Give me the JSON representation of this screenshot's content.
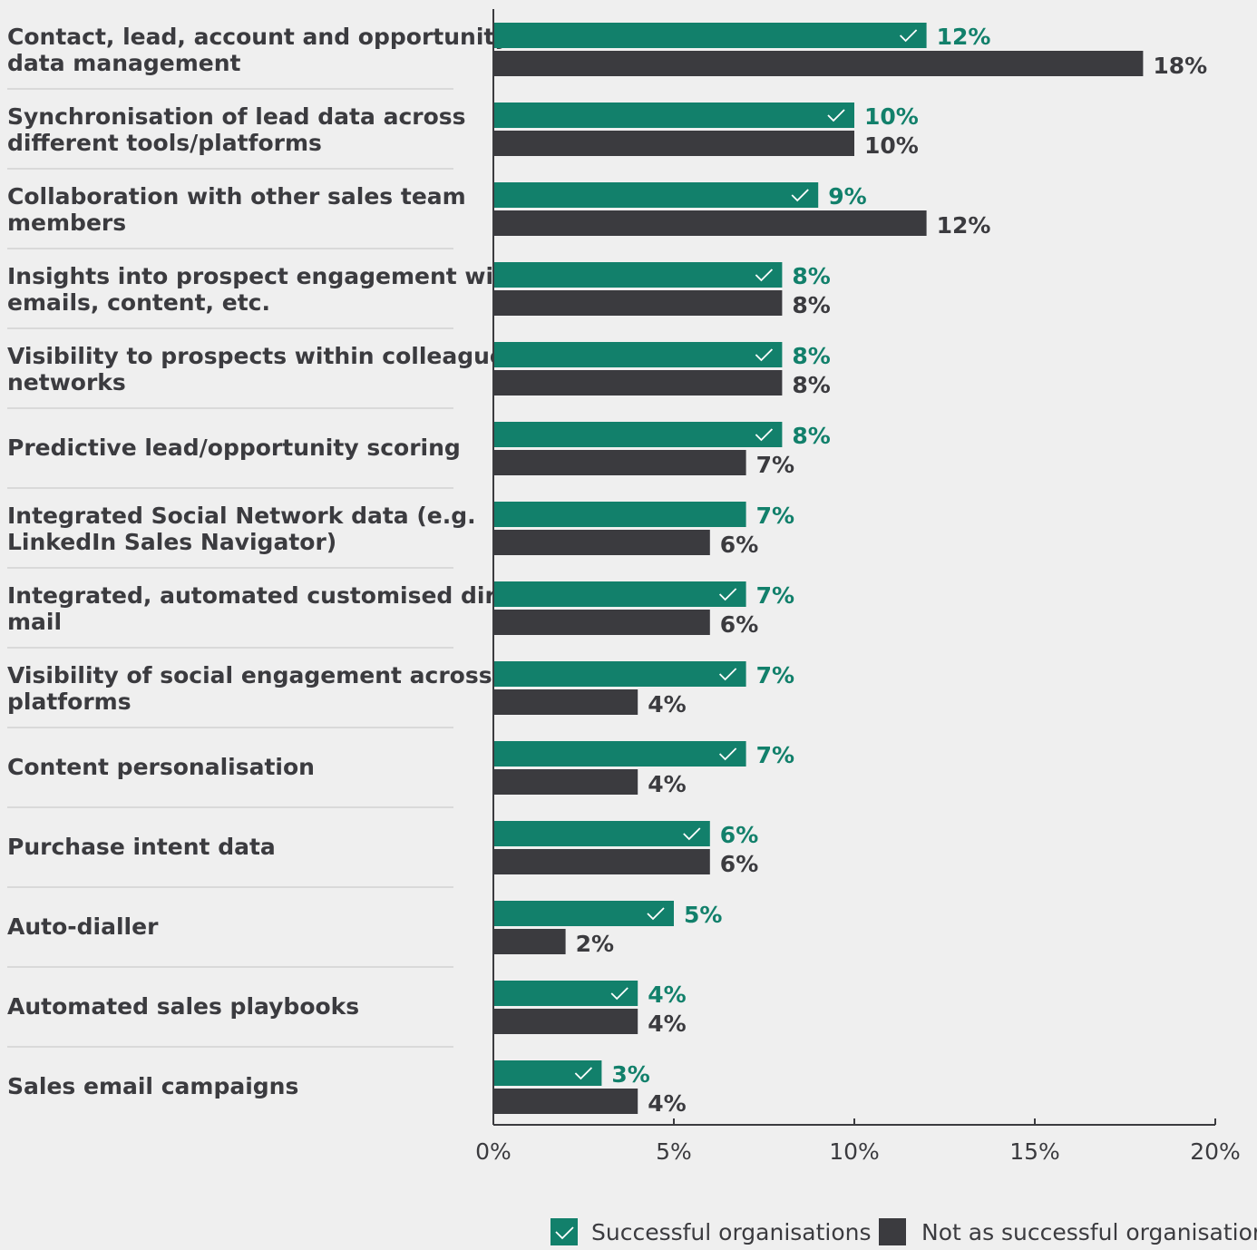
{
  "chart_data": {
    "type": "bar",
    "orientation": "horizontal",
    "categories": [
      [
        "Contact, lead, account and opportunity",
        "data management"
      ],
      [
        "Synchronisation of lead data across",
        "different tools/platforms"
      ],
      [
        "Collaboration with other sales team",
        "members"
      ],
      [
        "Insights into prospect engagement with",
        "emails, content, etc."
      ],
      [
        "Visibility to prospects within colleagues’",
        "networks"
      ],
      [
        "Predictive lead/opportunity scoring"
      ],
      [
        "Integrated Social Network data (e.g.",
        "LinkedIn Sales Navigator)"
      ],
      [
        "Integrated, automated customised direct",
        "mail"
      ],
      [
        "Visibility of social engagement across",
        "platforms"
      ],
      [
        "Content personalisation"
      ],
      [
        "Purchase intent data"
      ],
      [
        "Auto-dialler"
      ],
      [
        "Automated sales playbooks"
      ],
      [
        "Sales email campaigns"
      ]
    ],
    "series": [
      {
        "name": "Successful organisations",
        "color": "#12806b",
        "values": [
          12,
          10,
          9,
          8,
          8,
          8,
          7,
          7,
          7,
          7,
          6,
          5,
          4,
          3
        ],
        "labels": [
          "12%",
          "10%",
          "9%",
          "8%",
          "8%",
          "8%",
          "7%",
          "7%",
          "7%",
          "7%",
          "6%",
          "5%",
          "4%",
          "3%"
        ],
        "checkmark": [
          true,
          true,
          true,
          true,
          true,
          true,
          false,
          true,
          true,
          true,
          true,
          true,
          true,
          true
        ]
      },
      {
        "name": "Not as successful organisations",
        "color": "#3b3b3f",
        "values": [
          18,
          10,
          12,
          8,
          8,
          7,
          6,
          6,
          4,
          4,
          6,
          2,
          4,
          4
        ],
        "labels": [
          "18%",
          "10%",
          "12%",
          "8%",
          "8%",
          "7%",
          "6%",
          "6%",
          "4%",
          "4%",
          "6%",
          "2%",
          "4%",
          "4%"
        ]
      }
    ],
    "xlim": [
      0,
      20
    ],
    "xticks": [
      0,
      5,
      10,
      15,
      20
    ],
    "xtick_labels": [
      "0%",
      "5%",
      "10%",
      "15%",
      "20%"
    ],
    "grid": false,
    "legend_position": "bottom-right",
    "title": "",
    "xlabel": "",
    "ylabel": ""
  }
}
